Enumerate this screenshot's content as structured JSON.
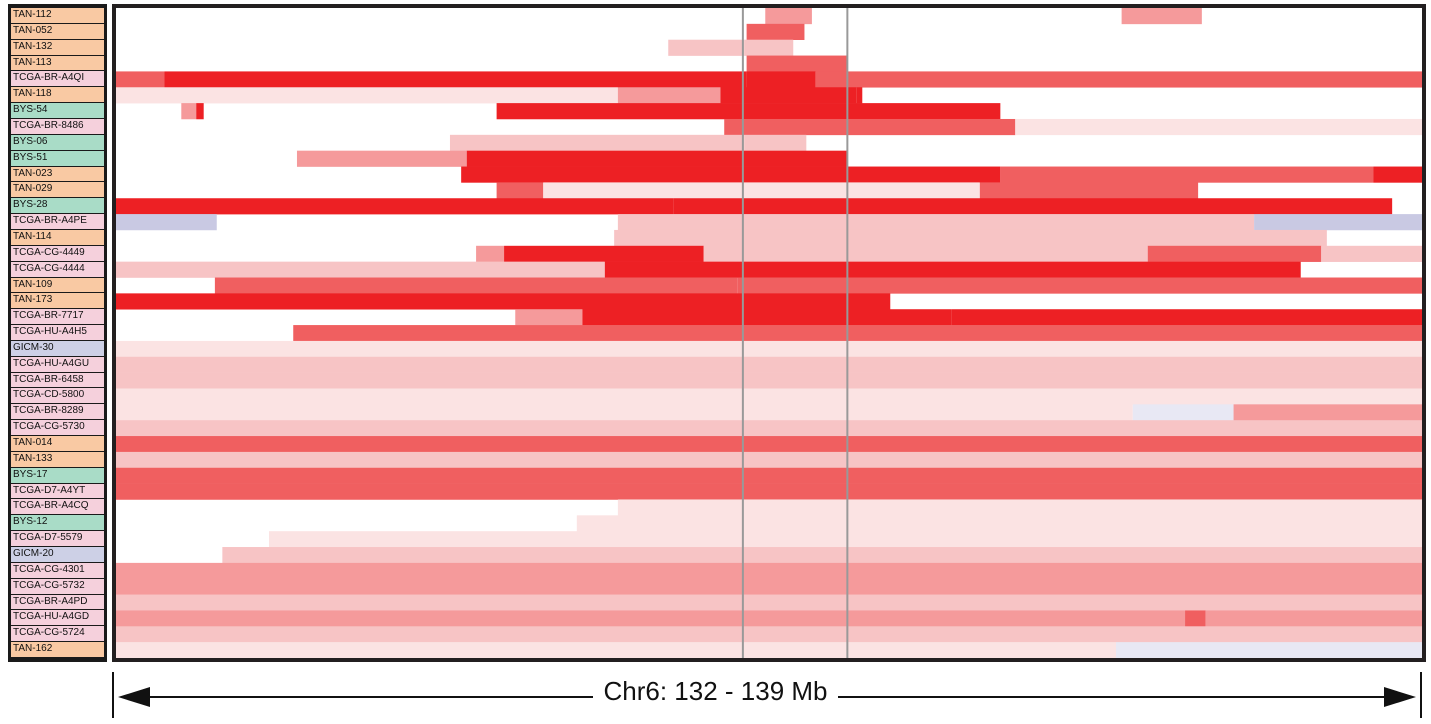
{
  "colors": {
    "TAN": "#f9c9a3",
    "TCGA": "#f5d0dc",
    "BYS": "#a9dcc7",
    "GICM": "#cdd0e6",
    "gain_levels": [
      "#fbe3e3",
      "#f7c4c5",
      "#f59a9b",
      "#f05f60",
      "#ed2024"
    ],
    "loss_levels": [
      "#e8e8f4",
      "#c9c9e3"
    ],
    "marker": "#999999"
  },
  "chart_data": {
    "type": "heatmap",
    "title": "",
    "xlabel": "Chr6: 132 - 139 Mb",
    "x_range_mb": [
      132,
      139
    ],
    "markers_mb": [
      135.36,
      135.92
    ],
    "samples": [
      {
        "name": "TAN-112",
        "group": "TAN",
        "segments": [
          [
            135.48,
            135.73,
            3
          ],
          [
            137.39,
            137.82,
            3
          ]
        ]
      },
      {
        "name": "TAN-052",
        "group": "TAN",
        "segments": [
          [
            135.38,
            135.69,
            4
          ]
        ]
      },
      {
        "name": "TAN-132",
        "group": "TAN",
        "segments": [
          [
            134.96,
            135.37,
            2
          ],
          [
            135.37,
            135.63,
            2
          ]
        ]
      },
      {
        "name": "TAN-113",
        "group": "TAN",
        "segments": [
          [
            135.38,
            135.92,
            4
          ]
        ]
      },
      {
        "name": "TCGA-BR-A4QI",
        "group": "TCGA",
        "segments": [
          [
            132.0,
            132.26,
            4
          ],
          [
            132.26,
            135.38,
            5
          ],
          [
            135.38,
            135.75,
            5
          ],
          [
            135.75,
            135.92,
            4
          ],
          [
            135.92,
            139.0,
            4
          ]
        ]
      },
      {
        "name": "TAN-118",
        "group": "TAN",
        "segments": [
          [
            132.0,
            134.69,
            1
          ],
          [
            134.69,
            135.24,
            3
          ],
          [
            135.24,
            135.97,
            5
          ],
          [
            135.97,
            136.0,
            5
          ]
        ]
      },
      {
        "name": "BYS-54",
        "group": "BYS",
        "segments": [
          [
            132.35,
            132.43,
            3
          ],
          [
            132.43,
            132.47,
            5
          ],
          [
            134.04,
            135.92,
            5
          ],
          [
            135.92,
            136.74,
            5
          ]
        ]
      },
      {
        "name": "TCGA-BR-8486",
        "group": "TCGA",
        "segments": [
          [
            135.26,
            135.92,
            4
          ],
          [
            135.92,
            136.82,
            4
          ],
          [
            136.82,
            139.0,
            1
          ]
        ]
      },
      {
        "name": "BYS-06",
        "group": "BYS",
        "segments": [
          [
            133.79,
            135.37,
            2
          ],
          [
            135.37,
            135.7,
            2
          ]
        ]
      },
      {
        "name": "BYS-51",
        "group": "BYS",
        "segments": [
          [
            132.97,
            133.88,
            3
          ],
          [
            133.88,
            135.92,
            5
          ]
        ]
      },
      {
        "name": "TAN-023",
        "group": "TAN",
        "segments": [
          [
            133.85,
            135.92,
            5
          ],
          [
            135.92,
            136.74,
            5
          ],
          [
            136.74,
            138.74,
            4
          ],
          [
            138.74,
            139.0,
            5
          ]
        ]
      },
      {
        "name": "TAN-029",
        "group": "TAN",
        "segments": [
          [
            134.04,
            134.29,
            4
          ],
          [
            134.29,
            136.63,
            1
          ],
          [
            136.63,
            137.8,
            4
          ]
        ]
      },
      {
        "name": "BYS-28",
        "group": "BYS",
        "segments": [
          [
            132.0,
            134.99,
            5
          ],
          [
            134.99,
            138.84,
            5
          ]
        ]
      },
      {
        "name": "TCGA-BR-A4PE",
        "group": "TCGA",
        "segments": [
          [
            132.0,
            132.54,
            -2
          ],
          [
            132.54,
            134.69,
            0
          ],
          [
            134.69,
            138.1,
            2
          ],
          [
            138.1,
            139.0,
            -2
          ]
        ]
      },
      {
        "name": "TAN-114",
        "group": "TAN",
        "segments": [
          [
            134.67,
            135.92,
            2
          ],
          [
            135.92,
            138.49,
            2
          ]
        ]
      },
      {
        "name": "TCGA-CG-4449",
        "group": "TCGA",
        "segments": [
          [
            133.93,
            134.08,
            3
          ],
          [
            134.08,
            135.15,
            5
          ],
          [
            135.15,
            135.36,
            2
          ],
          [
            135.36,
            137.53,
            2
          ],
          [
            137.53,
            138.46,
            4
          ],
          [
            138.46,
            139.0,
            2
          ]
        ]
      },
      {
        "name": "TCGA-CG-4444",
        "group": "TCGA",
        "segments": [
          [
            132.0,
            134.62,
            2
          ],
          [
            134.62,
            138.35,
            5
          ]
        ]
      },
      {
        "name": "TAN-109",
        "group": "TAN",
        "segments": [
          [
            132.53,
            135.33,
            4
          ],
          [
            135.33,
            139.0,
            4
          ]
        ]
      },
      {
        "name": "TAN-173",
        "group": "TAN",
        "segments": [
          [
            132.0,
            136.15,
            5
          ]
        ]
      },
      {
        "name": "TCGA-BR-7717",
        "group": "TCGA",
        "segments": [
          [
            134.14,
            134.5,
            3
          ],
          [
            134.5,
            136.48,
            5
          ],
          [
            136.48,
            139.0,
            5
          ]
        ]
      },
      {
        "name": "TCGA-HU-A4H5",
        "group": "TCGA",
        "segments": [
          [
            132.95,
            139.0,
            4
          ]
        ]
      },
      {
        "name": "GICM-30",
        "group": "GICM",
        "segments": [
          [
            132.0,
            139.0,
            1
          ]
        ]
      },
      {
        "name": "TCGA-HU-A4GU",
        "group": "TCGA",
        "segments": [
          [
            132.0,
            139.0,
            2
          ]
        ]
      },
      {
        "name": "TCGA-BR-6458",
        "group": "TCGA",
        "segments": [
          [
            132.0,
            139.0,
            2
          ]
        ]
      },
      {
        "name": "TCGA-CD-5800",
        "group": "TCGA",
        "segments": [
          [
            132.0,
            139.0,
            1
          ]
        ]
      },
      {
        "name": "TCGA-BR-8289",
        "group": "TCGA",
        "segments": [
          [
            132.0,
            137.45,
            1
          ],
          [
            137.45,
            137.99,
            -1
          ],
          [
            137.99,
            139.0,
            3
          ]
        ]
      },
      {
        "name": "TCGA-CG-5730",
        "group": "TCGA",
        "segments": [
          [
            132.0,
            139.0,
            2
          ]
        ]
      },
      {
        "name": "TAN-014",
        "group": "TAN",
        "segments": [
          [
            132.0,
            139.0,
            4
          ]
        ]
      },
      {
        "name": "TAN-133",
        "group": "TAN",
        "segments": [
          [
            132.0,
            139.0,
            2
          ]
        ]
      },
      {
        "name": "BYS-17",
        "group": "BYS",
        "segments": [
          [
            132.0,
            139.0,
            4
          ]
        ]
      },
      {
        "name": "TCGA-D7-A4YT",
        "group": "TCGA",
        "segments": [
          [
            132.0,
            139.0,
            4
          ]
        ]
      },
      {
        "name": "TCGA-BR-A4CQ",
        "group": "TCGA",
        "segments": [
          [
            134.69,
            139.0,
            1
          ]
        ]
      },
      {
        "name": "BYS-12",
        "group": "BYS",
        "segments": [
          [
            134.47,
            139.0,
            1
          ]
        ]
      },
      {
        "name": "TCGA-D7-5579",
        "group": "TCGA",
        "segments": [
          [
            132.82,
            139.0,
            1
          ]
        ]
      },
      {
        "name": "GICM-20",
        "group": "GICM",
        "segments": [
          [
            132.57,
            139.0,
            2
          ]
        ]
      },
      {
        "name": "TCGA-CG-4301",
        "group": "TCGA",
        "segments": [
          [
            132.0,
            139.0,
            3
          ]
        ]
      },
      {
        "name": "TCGA-CG-5732",
        "group": "TCGA",
        "segments": [
          [
            132.0,
            139.0,
            3
          ]
        ]
      },
      {
        "name": "TCGA-BR-A4PD",
        "group": "TCGA",
        "segments": [
          [
            132.0,
            139.0,
            2
          ]
        ]
      },
      {
        "name": "TCGA-HU-A4GD",
        "group": "TCGA",
        "segments": [
          [
            132.0,
            137.73,
            3
          ],
          [
            137.73,
            137.84,
            4
          ],
          [
            137.84,
            139.0,
            3
          ]
        ]
      },
      {
        "name": "TCGA-CG-5724",
        "group": "TCGA",
        "segments": [
          [
            132.0,
            139.0,
            2
          ]
        ]
      },
      {
        "name": "TAN-162",
        "group": "TAN",
        "segments": [
          [
            132.0,
            137.36,
            1
          ],
          [
            137.36,
            139.0,
            -1
          ]
        ]
      }
    ]
  }
}
